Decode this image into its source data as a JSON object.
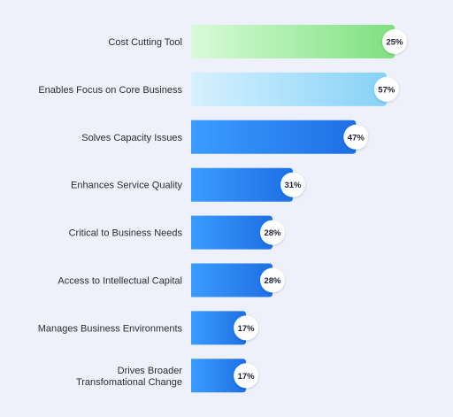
{
  "chart_data": {
    "type": "bar",
    "orientation": "horizontal",
    "categories": [
      [
        "Cost Cutting Tool"
      ],
      [
        "Enables Focus on Core Business"
      ],
      [
        "Solves Capacity Issues"
      ],
      [
        "Enhances Service Quality"
      ],
      [
        "Critical to Business Needs"
      ],
      [
        "Access to Intellectual Capital"
      ],
      [
        "Manages Business Environments"
      ],
      [
        "Drives Broader",
        "Transfomational Change"
      ]
    ],
    "values": [
      25,
      57,
      47,
      31,
      28,
      28,
      17,
      17
    ],
    "value_labels": [
      "25%",
      "57%",
      "47%",
      "31%",
      "28%",
      "28%",
      "17%",
      "17%"
    ],
    "fill_fractions": [
      1.0,
      0.96,
      0.81,
      0.5,
      0.4,
      0.4,
      0.27,
      0.27
    ],
    "colors": {
      "bar_1": [
        "#d8fbd8",
        "#7fe07f"
      ],
      "bar_2": [
        "#d6f1ff",
        "#86d2f7"
      ],
      "bar_default": [
        "#3a9cff",
        "#1e6fe3"
      ],
      "value_bubble": "#ffffff",
      "background": "#eef0fb"
    }
  }
}
